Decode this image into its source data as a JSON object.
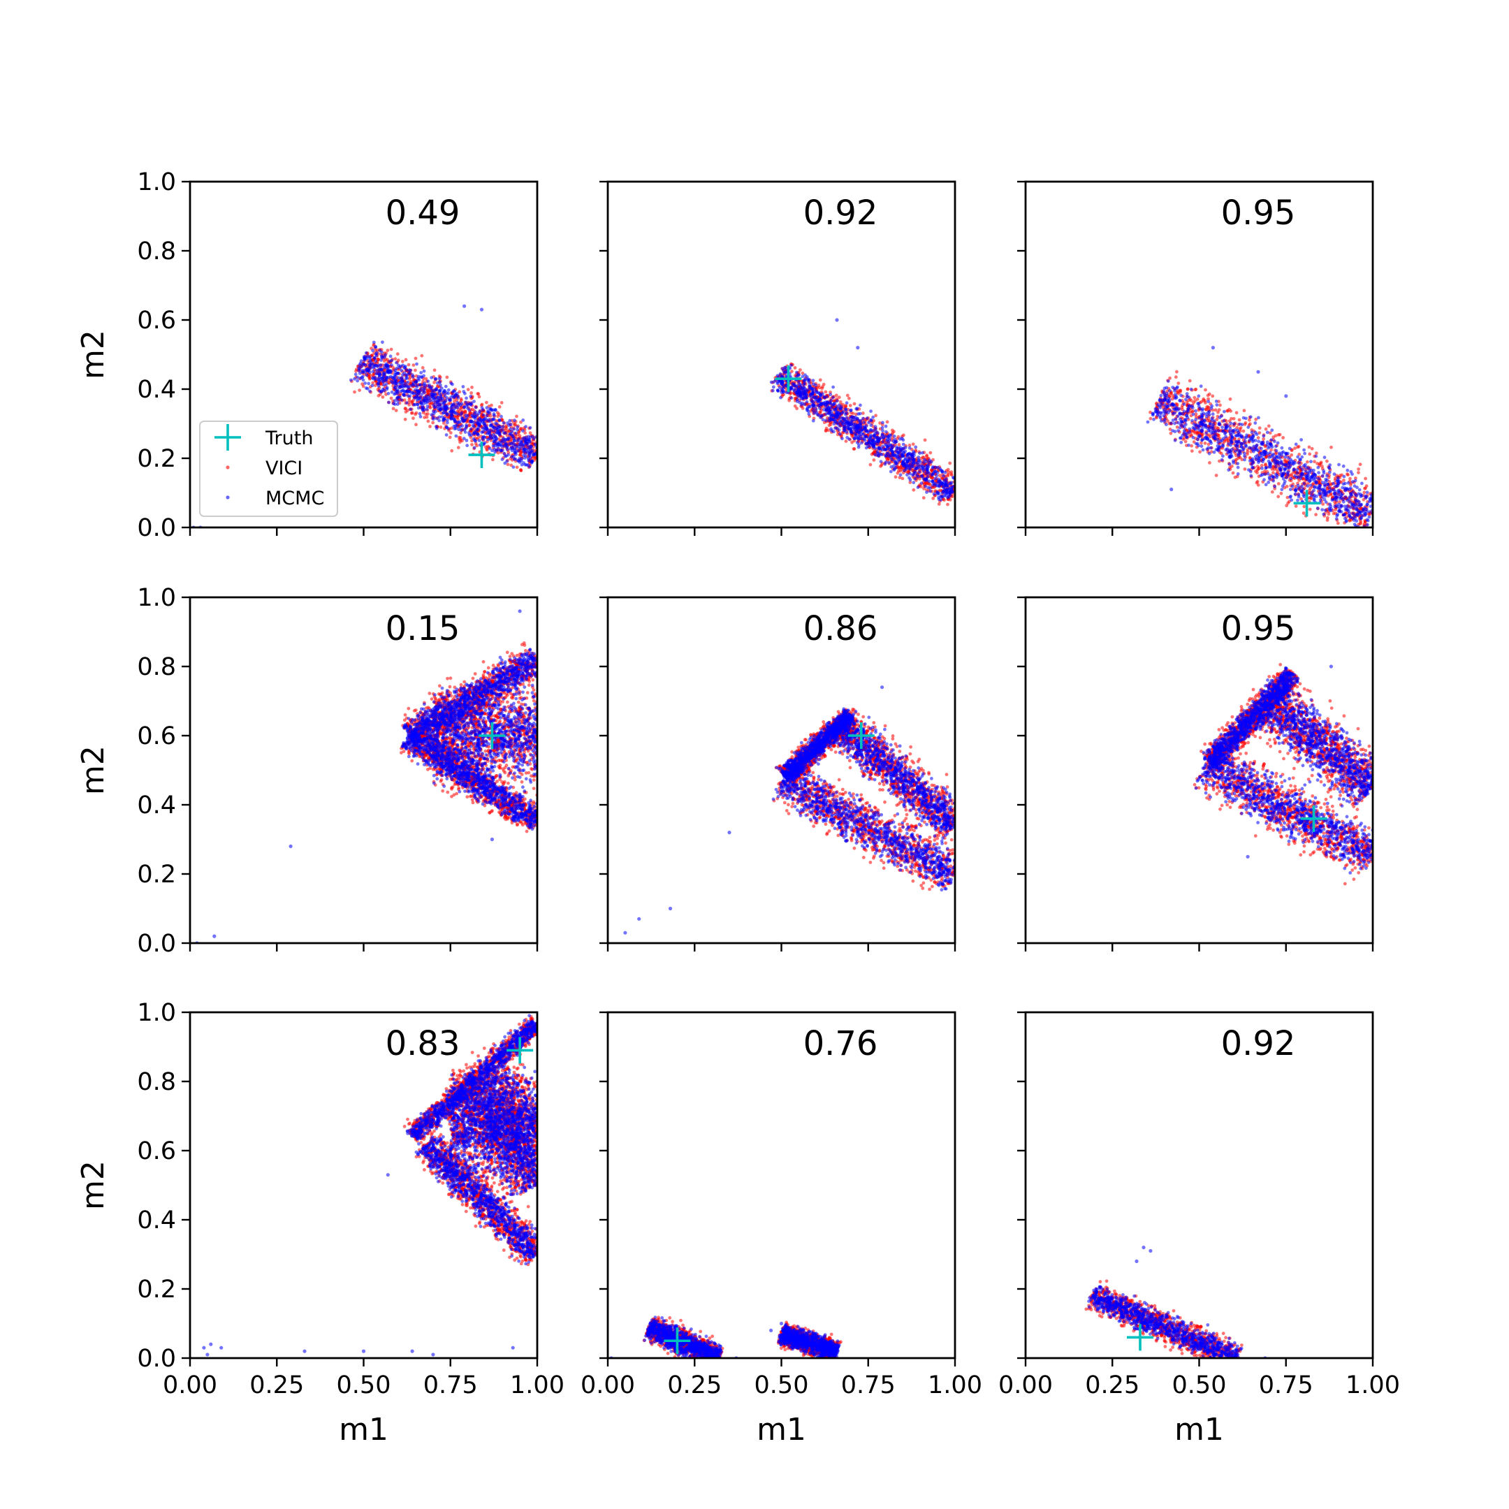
{
  "figure": {
    "xlabel": "m1",
    "ylabel": "m2",
    "x_ticks": [
      "0.00",
      "0.25",
      "0.50",
      "0.75",
      "1.00"
    ],
    "y_ticks": [
      "0.0",
      "0.2",
      "0.4",
      "0.6",
      "0.8",
      "1.0"
    ],
    "legend": [
      {
        "label": "Truth",
        "marker": "plus",
        "color": "#00BFBF"
      },
      {
        "label": "VICI",
        "marker": "dot",
        "color": "#FF0000"
      },
      {
        "label": "MCMC",
        "marker": "dot",
        "color": "#0000FF"
      }
    ]
  },
  "chart_data": [
    {
      "type": "scatter",
      "panel": "row1-col1",
      "score": "0.49",
      "xlabel": "",
      "ylabel": "m2",
      "xlim": [
        0,
        1
      ],
      "ylim": [
        0,
        1
      ],
      "legend_position": "lower-left",
      "truth": [
        0.84,
        0.21
      ],
      "bands": [
        {
          "x": [
            0.49,
            1.0
          ],
          "y": [
            0.48,
            0.21
          ],
          "w": 0.13
        }
      ],
      "outliers": [
        [
          0.01,
          0.0
        ],
        [
          0.03,
          0.0
        ],
        [
          0.79,
          0.64
        ],
        [
          0.84,
          0.63
        ]
      ]
    },
    {
      "type": "scatter",
      "panel": "row1-col2",
      "score": "0.92",
      "xlabel": "",
      "ylabel": "",
      "xlim": [
        0,
        1
      ],
      "ylim": [
        0,
        1
      ],
      "truth": [
        0.52,
        0.43
      ],
      "bands": [
        {
          "x": [
            0.49,
            1.0
          ],
          "y": [
            0.44,
            0.1
          ],
          "w": 0.1
        }
      ],
      "outliers": [
        [
          0.66,
          0.6
        ],
        [
          0.72,
          0.52
        ]
      ]
    },
    {
      "type": "scatter",
      "panel": "row1-col3",
      "score": "0.95",
      "xlabel": "",
      "ylabel": "",
      "xlim": [
        0,
        1
      ],
      "ylim": [
        0,
        1
      ],
      "truth": [
        0.81,
        0.07
      ],
      "bands": [
        {
          "x": [
            0.38,
            1.0
          ],
          "y": [
            0.37,
            0.04
          ],
          "w": 0.16
        }
      ],
      "outliers": [
        [
          0.42,
          0.11
        ],
        [
          0.54,
          0.52
        ],
        [
          0.67,
          0.45
        ],
        [
          0.75,
          0.38
        ]
      ]
    },
    {
      "type": "scatter",
      "panel": "row2-col1",
      "score": "0.15",
      "xlabel": "",
      "ylabel": "m2",
      "xlim": [
        0,
        1
      ],
      "ylim": [
        0,
        1
      ],
      "truth": [
        0.87,
        0.6
      ],
      "bands": [
        {
          "x": [
            0.63,
            1.0
          ],
          "y": [
            0.6,
            0.82
          ],
          "w": 0.1
        },
        {
          "x": [
            0.63,
            1.0
          ],
          "y": [
            0.6,
            0.35
          ],
          "w": 0.09
        },
        {
          "x": [
            0.7,
            1.0
          ],
          "y": [
            0.6,
            0.6
          ],
          "w": 0.26
        }
      ],
      "outliers": [
        [
          0.29,
          0.28
        ],
        [
          0.07,
          0.02
        ],
        [
          0.02,
          0.0
        ],
        [
          0.95,
          0.96
        ],
        [
          0.87,
          0.3
        ]
      ]
    },
    {
      "type": "scatter",
      "panel": "row2-col2",
      "score": "0.86",
      "xlabel": "",
      "ylabel": "",
      "xlim": [
        0,
        1
      ],
      "ylim": [
        0,
        1
      ],
      "truth": [
        0.73,
        0.6
      ],
      "bands": [
        {
          "x": [
            0.51,
            0.7
          ],
          "y": [
            0.48,
            0.66
          ],
          "w": 0.06
        },
        {
          "x": [
            0.5,
            1.0
          ],
          "y": [
            0.47,
            0.2
          ],
          "w": 0.13
        },
        {
          "x": [
            0.66,
            1.0
          ],
          "y": [
            0.64,
            0.34
          ],
          "w": 0.12
        }
      ],
      "outliers": [
        [
          0.35,
          0.32
        ],
        [
          0.18,
          0.1
        ],
        [
          0.09,
          0.07
        ],
        [
          0.05,
          0.03
        ],
        [
          0.79,
          0.74
        ]
      ]
    },
    {
      "type": "scatter",
      "panel": "row2-col3",
      "score": "0.95",
      "xlabel": "",
      "ylabel": "",
      "xlim": [
        0,
        1
      ],
      "ylim": [
        0,
        1
      ],
      "truth": [
        0.83,
        0.36
      ],
      "bands": [
        {
          "x": [
            0.53,
            0.77
          ],
          "y": [
            0.52,
            0.78
          ],
          "w": 0.07
        },
        {
          "x": [
            0.52,
            1.0
          ],
          "y": [
            0.52,
            0.25
          ],
          "w": 0.14
        },
        {
          "x": [
            0.7,
            1.0
          ],
          "y": [
            0.7,
            0.45
          ],
          "w": 0.15
        }
      ],
      "outliers": [
        [
          0.63,
          0.42
        ],
        [
          0.58,
          0.45
        ],
        [
          0.88,
          0.8
        ],
        [
          0.64,
          0.25
        ]
      ]
    },
    {
      "type": "scatter",
      "panel": "row3-col1",
      "score": "0.83",
      "xlabel": "m1",
      "ylabel": "m2",
      "xlim": [
        0,
        1
      ],
      "ylim": [
        0,
        1
      ],
      "truth": [
        0.95,
        0.89
      ],
      "bands": [
        {
          "x": [
            0.64,
            1.0
          ],
          "y": [
            0.64,
            0.97
          ],
          "w": 0.06
        },
        {
          "x": [
            0.68,
            1.0
          ],
          "y": [
            0.62,
            0.3
          ],
          "w": 0.1
        },
        {
          "x": [
            0.75,
            1.0
          ],
          "y": [
            0.68,
            0.68
          ],
          "w": 0.3
        },
        {
          "x": [
            0.85,
            1.0
          ],
          "y": [
            0.8,
            0.5
          ],
          "w": 0.2
        }
      ],
      "outliers": [
        [
          0.04,
          0.03
        ],
        [
          0.06,
          0.04
        ],
        [
          0.09,
          0.03
        ],
        [
          0.05,
          0.01
        ],
        [
          0.33,
          0.02
        ],
        [
          0.5,
          0.02
        ],
        [
          0.64,
          0.02
        ],
        [
          0.7,
          0.01
        ],
        [
          0.57,
          0.53
        ],
        [
          0.93,
          0.03
        ]
      ]
    },
    {
      "type": "scatter",
      "panel": "row3-col2",
      "score": "0.76",
      "xlabel": "m1",
      "ylabel": "",
      "xlim": [
        0,
        1
      ],
      "ylim": [
        0,
        1
      ],
      "truth": [
        0.2,
        0.05
      ],
      "bands": [
        {
          "x": [
            0.12,
            0.32
          ],
          "y": [
            0.09,
            0.0
          ],
          "w": 0.07
        },
        {
          "x": [
            0.5,
            0.66
          ],
          "y": [
            0.07,
            0.02
          ],
          "w": 0.06
        }
      ],
      "outliers": [
        [
          0.01,
          0.0
        ],
        [
          0.37,
          0.0
        ],
        [
          0.47,
          0.08
        ],
        [
          0.5,
          0.1
        ]
      ]
    },
    {
      "type": "scatter",
      "panel": "row3-col3",
      "score": "0.92",
      "xlabel": "m1",
      "ylabel": "",
      "xlim": [
        0,
        1
      ],
      "ylim": [
        0,
        1
      ],
      "truth": [
        0.33,
        0.06
      ],
      "bands": [
        {
          "x": [
            0.19,
            0.61
          ],
          "y": [
            0.18,
            0.0
          ],
          "w": 0.08
        }
      ],
      "outliers": [
        [
          0.34,
          0.32
        ],
        [
          0.36,
          0.31
        ],
        [
          0.69,
          0.0
        ],
        [
          0.32,
          0.28
        ]
      ]
    }
  ]
}
